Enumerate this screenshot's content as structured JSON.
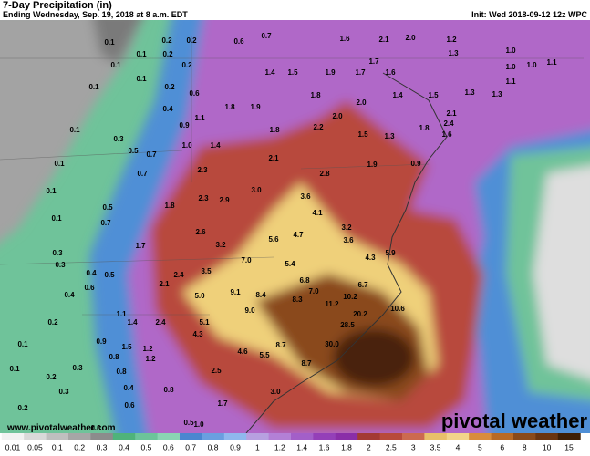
{
  "header": {
    "title": "7-Day Precipitation (in)",
    "subtitle": "Ending Wednesday, Sep. 19, 2018 at 8 a.m. EDT",
    "init": "Init: Wed 2018-09-12 12z WPC"
  },
  "footer": {
    "website": "www.pivotalweather.com",
    "logo": "pivotal weather"
  },
  "colorbar": {
    "labels": [
      "0.01",
      "0.05",
      "0.1",
      "0.2",
      "0.3",
      "0.4",
      "0.5",
      "0.6",
      "0.7",
      "0.8",
      "0.9",
      "1",
      "1.2",
      "1.4",
      "1.6",
      "1.8",
      "2",
      "2.5",
      "3",
      "3.5",
      "4",
      "5",
      "6",
      "8",
      "10",
      "15"
    ]
  },
  "map_labels": [
    "0.1",
    "0.2",
    "0.2",
    "0.6",
    "0.7",
    "1.6",
    "2.1",
    "2.0",
    "1.2",
    "1.3",
    "1.0",
    "1.0",
    "1.1",
    "1.0",
    "0.1",
    "0.1",
    "0.2",
    "0.2",
    "0.1",
    "0.2",
    "0.6",
    "1.4",
    "1.5",
    "1.9",
    "1.7",
    "1.6",
    "1.7",
    "1.8",
    "1.9",
    "1.8",
    "2.0",
    "1.4",
    "1.5",
    "1.3",
    "1.3",
    "1.1",
    "2.1",
    "0.1",
    "0.1",
    "0.4",
    "0.3",
    "0.5",
    "0.7",
    "0.9",
    "1.1",
    "1.0",
    "1.4",
    "1.8",
    "2.0",
    "2.2",
    "1.5",
    "1.3",
    "1.8",
    "1.6",
    "2.4",
    "0.1",
    "0.1",
    "0.7",
    "1.8",
    "2.3",
    "2.1",
    "2.8",
    "1.9",
    "3.0",
    "2.3",
    "2.9",
    "3.6",
    "4.1",
    "0.9",
    "0.1",
    "0.3",
    "0.5",
    "0.7",
    "1.7",
    "2.6",
    "3.2",
    "5.6",
    "4.7",
    "3.2",
    "3.6",
    "4.3",
    "5.9",
    "0.3",
    "0.4",
    "0.4",
    "0.5",
    "0.6",
    "2.1",
    "2.4",
    "3.5",
    "7.0",
    "5.4",
    "6.8",
    "7.0",
    "6.7",
    "10.2",
    "1.1",
    "1.4",
    "5.0",
    "9.1",
    "8.4",
    "8.3",
    "11.2",
    "20.2",
    "10.6",
    "0.2",
    "0.1",
    "0.9",
    "1.5",
    "1.2",
    "2.4",
    "4.3",
    "5.1",
    "9.0",
    "28.5",
    "30.0",
    "4.6",
    "5.5",
    "8.7",
    "0.2",
    "0.1",
    "0.3",
    "0.8",
    "0.8",
    "1.2",
    "2.5",
    "8.7",
    "0.2",
    "0.3",
    "0.4",
    "0.8",
    "1.7",
    "3.0",
    "0.6",
    "0.5",
    "1.0",
    "0.3"
  ]
}
